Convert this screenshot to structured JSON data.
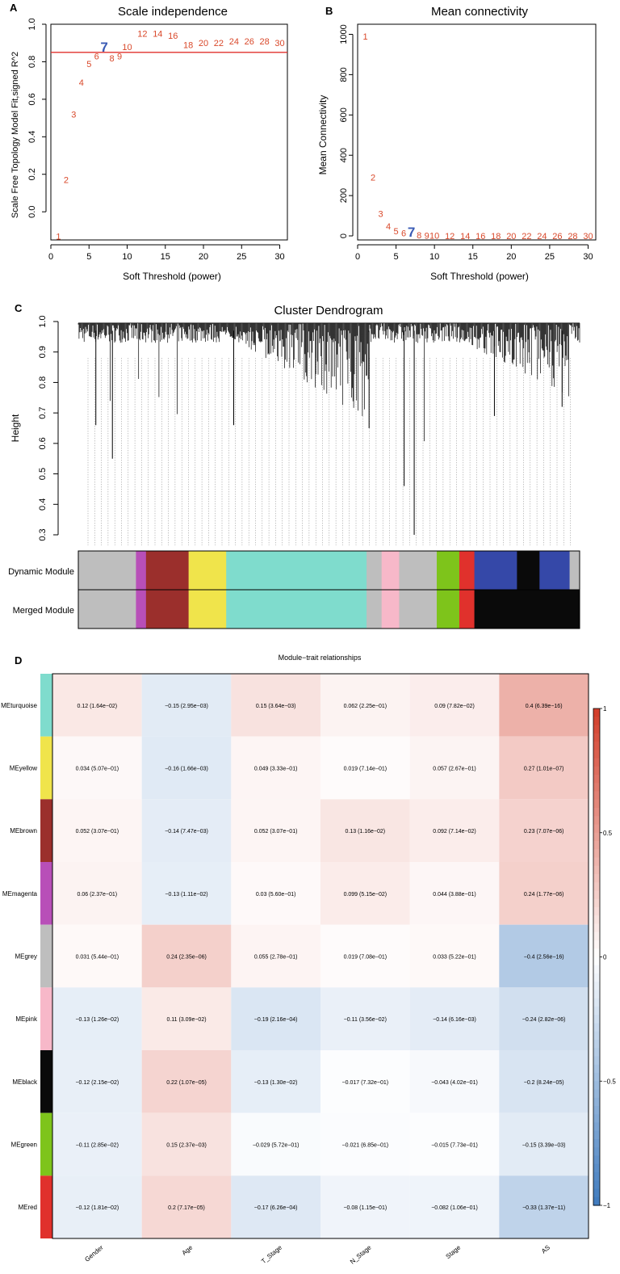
{
  "chart_data": [
    {
      "panel_label": "A",
      "type": "scatter",
      "title": "Scale independence",
      "xlabel": "Soft Threshold (power)",
      "ylabel": "Scale Free Topology Model Fit,signed R^2",
      "xlim": [
        0,
        31
      ],
      "ylim": [
        -0.15,
        1.0
      ],
      "xticks": [
        "0",
        "5",
        "10",
        "15",
        "20",
        "25",
        "30"
      ],
      "yticks": [
        "0.0",
        "0.2",
        "0.4",
        "0.6",
        "0.8",
        "1.0"
      ],
      "hline": 0.85,
      "highlight_power": 7,
      "points": [
        {
          "x": 1,
          "y": -0.13,
          "label": "1"
        },
        {
          "x": 2,
          "y": 0.17,
          "label": "2"
        },
        {
          "x": 3,
          "y": 0.52,
          "label": "3"
        },
        {
          "x": 4,
          "y": 0.69,
          "label": "4"
        },
        {
          "x": 5,
          "y": 0.79,
          "label": "5"
        },
        {
          "x": 6,
          "y": 0.83,
          "label": "6"
        },
        {
          "x": 7,
          "y": 0.87,
          "label": "7"
        },
        {
          "x": 8,
          "y": 0.82,
          "label": "8"
        },
        {
          "x": 9,
          "y": 0.83,
          "label": "9"
        },
        {
          "x": 10,
          "y": 0.88,
          "label": "10"
        },
        {
          "x": 12,
          "y": 0.95,
          "label": "12"
        },
        {
          "x": 14,
          "y": 0.95,
          "label": "14"
        },
        {
          "x": 16,
          "y": 0.94,
          "label": "16"
        },
        {
          "x": 18,
          "y": 0.89,
          "label": "18"
        },
        {
          "x": 20,
          "y": 0.9,
          "label": "20"
        },
        {
          "x": 22,
          "y": 0.9,
          "label": "22"
        },
        {
          "x": 24,
          "y": 0.91,
          "label": "24"
        },
        {
          "x": 26,
          "y": 0.91,
          "label": "26"
        },
        {
          "x": 28,
          "y": 0.91,
          "label": "28"
        },
        {
          "x": 30,
          "y": 0.9,
          "label": "30"
        }
      ]
    },
    {
      "panel_label": "B",
      "type": "scatter",
      "title": "Mean connectivity",
      "xlabel": "Soft Threshold (power)",
      "ylabel": "Mean Connectivity",
      "xlim": [
        0,
        31
      ],
      "ylim": [
        -20,
        1050
      ],
      "xticks": [
        "0",
        "5",
        "10",
        "15",
        "20",
        "25",
        "30"
      ],
      "yticks": [
        "0",
        "200",
        "400",
        "600",
        "800",
        "1000"
      ],
      "highlight_power": 7,
      "points": [
        {
          "x": 1,
          "y": 990,
          "label": "1"
        },
        {
          "x": 2,
          "y": 290,
          "label": "2"
        },
        {
          "x": 3,
          "y": 110,
          "label": "3"
        },
        {
          "x": 4,
          "y": 48,
          "label": "4"
        },
        {
          "x": 5,
          "y": 25,
          "label": "5"
        },
        {
          "x": 6,
          "y": 14,
          "label": "6"
        },
        {
          "x": 7,
          "y": 12,
          "label": "7"
        },
        {
          "x": 8,
          "y": 5,
          "label": "8"
        },
        {
          "x": 9,
          "y": 3,
          "label": "9"
        },
        {
          "x": 10,
          "y": 2,
          "label": "10"
        },
        {
          "x": 12,
          "y": 1,
          "label": "12"
        },
        {
          "x": 14,
          "y": 1,
          "label": "14"
        },
        {
          "x": 16,
          "y": 1,
          "label": "16"
        },
        {
          "x": 18,
          "y": 1,
          "label": "18"
        },
        {
          "x": 20,
          "y": 1,
          "label": "20"
        },
        {
          "x": 22,
          "y": 1,
          "label": "22"
        },
        {
          "x": 24,
          "y": 1,
          "label": "24"
        },
        {
          "x": 26,
          "y": 1,
          "label": "26"
        },
        {
          "x": 28,
          "y": 1,
          "label": "28"
        },
        {
          "x": 30,
          "y": 1,
          "label": "30"
        }
      ]
    },
    {
      "panel_label": "C",
      "type": "dendrogram",
      "title": "Cluster Dendrogram",
      "ylabel": "Height",
      "ylim": [
        0.3,
        1.0
      ],
      "yticks": [
        "0.3",
        "0.4",
        "0.5",
        "0.6",
        "0.7",
        "0.8",
        "0.9",
        "1.0"
      ],
      "color_rows": [
        "Dynamic Module",
        "Merged Module"
      ],
      "merged_modules": [
        {
          "module": "grey",
          "color": "#bebebe",
          "frac": 0.115
        },
        {
          "module": "magenta",
          "color": "#b84fb8",
          "frac": 0.02
        },
        {
          "module": "brown",
          "color": "#9b2f2c",
          "frac": 0.085
        },
        {
          "module": "yellow",
          "color": "#f0e44b",
          "frac": 0.075
        },
        {
          "module": "turquoise",
          "color": "#7fdccd",
          "frac": 0.28
        },
        {
          "module": "grey",
          "color": "#bebebe",
          "frac": 0.03
        },
        {
          "module": "pink",
          "color": "#f7b8c9",
          "frac": 0.035
        },
        {
          "module": "grey",
          "color": "#bebebe",
          "frac": 0.075
        },
        {
          "module": "green",
          "color": "#7ec41b",
          "frac": 0.045
        },
        {
          "module": "red",
          "color": "#e0312c",
          "frac": 0.03
        },
        {
          "module": "black",
          "color": "#0a0a0a",
          "frac": 0.21
        }
      ],
      "dynamic_modules": [
        {
          "module": "grey",
          "color": "#bebebe",
          "frac": 0.115
        },
        {
          "module": "magenta",
          "color": "#b84fb8",
          "frac": 0.02
        },
        {
          "module": "brown",
          "color": "#9b2f2c",
          "frac": 0.085
        },
        {
          "module": "yellow",
          "color": "#f0e44b",
          "frac": 0.075
        },
        {
          "module": "turquoise",
          "color": "#7fdccd",
          "frac": 0.28
        },
        {
          "module": "grey",
          "color": "#bebebe",
          "frac": 0.03
        },
        {
          "module": "pink",
          "color": "#f7b8c9",
          "frac": 0.035
        },
        {
          "module": "grey",
          "color": "#bebebe",
          "frac": 0.075
        },
        {
          "module": "green",
          "color": "#7ec41b",
          "frac": 0.045
        },
        {
          "module": "red",
          "color": "#e0312c",
          "frac": 0.03
        },
        {
          "module": "blue",
          "color": "#3548a8",
          "frac": 0.085
        },
        {
          "module": "black",
          "color": "#0a0a0a",
          "frac": 0.045
        },
        {
          "module": "blue",
          "color": "#3548a8",
          "frac": 0.06
        },
        {
          "module": "grey",
          "color": "#bebebe",
          "frac": 0.02
        }
      ]
    },
    {
      "panel_label": "D",
      "type": "heatmap",
      "title": "Module−trait relationships",
      "columns": [
        "Gender",
        "Age",
        "T_Stage",
        "N_Stage",
        "Stage",
        "AS"
      ],
      "rows": [
        {
          "name": "MEturquoise",
          "color": "#7fdccd",
          "r": [
            0.12,
            -0.15,
            0.15,
            0.062,
            0.09,
            0.4
          ],
          "labels": [
            "0.12 (1.64e−02)",
            "−0.15 (2.95e−03)",
            "0.15 (3.64e−03)",
            "0.062 (2.25e−01)",
            "0.09 (7.82e−02)",
            "0.4 (6.39e−16)"
          ]
        },
        {
          "name": "MEyellow",
          "color": "#f0e44b",
          "r": [
            0.034,
            -0.16,
            0.049,
            0.019,
            0.057,
            0.27
          ],
          "labels": [
            "0.034 (5.07e−01)",
            "−0.16 (1.66e−03)",
            "0.049 (3.33e−01)",
            "0.019 (7.14e−01)",
            "0.057 (2.67e−01)",
            "0.27 (1.01e−07)"
          ]
        },
        {
          "name": "MEbrown",
          "color": "#9b2f2c",
          "r": [
            0.052,
            -0.14,
            0.052,
            0.13,
            0.092,
            0.23
          ],
          "labels": [
            "0.052 (3.07e−01)",
            "−0.14 (7.47e−03)",
            "0.052 (3.07e−01)",
            "0.13 (1.16e−02)",
            "0.092 (7.14e−02)",
            "0.23 (7.07e−06)"
          ]
        },
        {
          "name": "MEmagenta",
          "color": "#b84fb8",
          "r": [
            0.06,
            -0.13,
            0.03,
            0.099,
            0.044,
            0.24
          ],
          "labels": [
            "0.06 (2.37e−01)",
            "−0.13 (1.11e−02)",
            "0.03 (5.60e−01)",
            "0.099 (5.15e−02)",
            "0.044 (3.88e−01)",
            "0.24 (1.77e−06)"
          ]
        },
        {
          "name": "MEgrey",
          "color": "#bebebe",
          "r": [
            0.031,
            0.24,
            0.055,
            0.019,
            0.033,
            -0.4
          ],
          "labels": [
            "0.031 (5.44e−01)",
            "0.24 (2.35e−06)",
            "0.055 (2.78e−01)",
            "0.019 (7.08e−01)",
            "0.033 (5.22e−01)",
            "−0.4 (2.56e−16)"
          ]
        },
        {
          "name": "MEpink",
          "color": "#f7b8c9",
          "r": [
            -0.13,
            0.11,
            -0.19,
            -0.11,
            -0.14,
            -0.24
          ],
          "labels": [
            "−0.13 (1.26e−02)",
            "0.11 (3.09e−02)",
            "−0.19 (2.16e−04)",
            "−0.11 (3.56e−02)",
            "−0.14 (6.16e−03)",
            "−0.24 (2.82e−06)"
          ]
        },
        {
          "name": "MEblack",
          "color": "#0a0a0a",
          "r": [
            -0.12,
            0.22,
            -0.13,
            -0.017,
            -0.043,
            -0.2
          ],
          "labels": [
            "−0.12 (2.15e−02)",
            "0.22 (1.07e−05)",
            "−0.13 (1.30e−02)",
            "−0.017 (7.32e−01)",
            "−0.043 (4.02e−01)",
            "−0.2 (8.24e−05)"
          ]
        },
        {
          "name": "MEgreen",
          "color": "#7ec41b",
          "r": [
            -0.11,
            0.15,
            -0.029,
            -0.021,
            -0.015,
            -0.15
          ],
          "labels": [
            "−0.11 (2.85e−02)",
            "0.15 (2.37e−03)",
            "−0.029 (5.72e−01)",
            "−0.021 (6.85e−01)",
            "−0.015 (7.73e−01)",
            "−0.15 (3.39e−03)"
          ]
        },
        {
          "name": "MEred",
          "color": "#e0312c",
          "r": [
            -0.12,
            0.2,
            -0.17,
            -0.08,
            -0.082,
            -0.33
          ],
          "labels": [
            "−0.12 (1.81e−02)",
            "0.2 (7.17e−05)",
            "−0.17 (6.26e−04)",
            "−0.08 (1.15e−01)",
            "−0.082 (1.06e−01)",
            "−0.33 (1.37e−11)"
          ]
        }
      ],
      "colorbar_ticks": [
        "1",
        "0.5",
        "0",
        "−0.5",
        "−1"
      ],
      "colorbar_range": [
        -1,
        1
      ]
    }
  ]
}
